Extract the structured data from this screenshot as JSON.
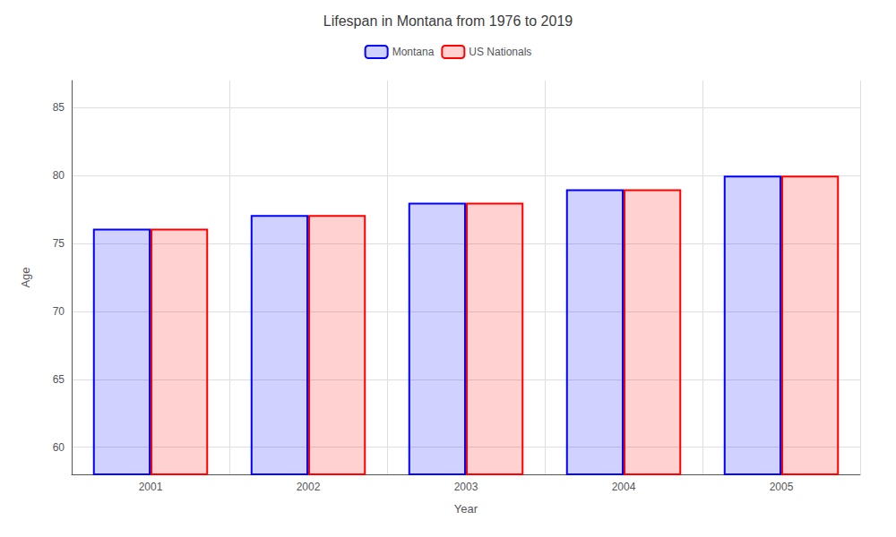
{
  "chart_data": {
    "type": "bar",
    "title": "Lifespan in Montana from 1976 to 2019",
    "xlabel": "Year",
    "ylabel": "Age",
    "categories": [
      "2001",
      "2002",
      "2003",
      "2004",
      "2005"
    ],
    "series": [
      {
        "name": "Montana",
        "color": "#0000ff",
        "values": [
          76.1,
          77.1,
          78.0,
          79.0,
          80.0
        ]
      },
      {
        "name": "US Nationals",
        "color": "#ff0000",
        "values": [
          76.1,
          77.1,
          78.0,
          79.0,
          80.0
        ]
      }
    ],
    "ylim": [
      58,
      87
    ],
    "yticks": [
      60,
      65,
      70,
      75,
      80,
      85
    ],
    "grid": true,
    "legend": "top"
  }
}
